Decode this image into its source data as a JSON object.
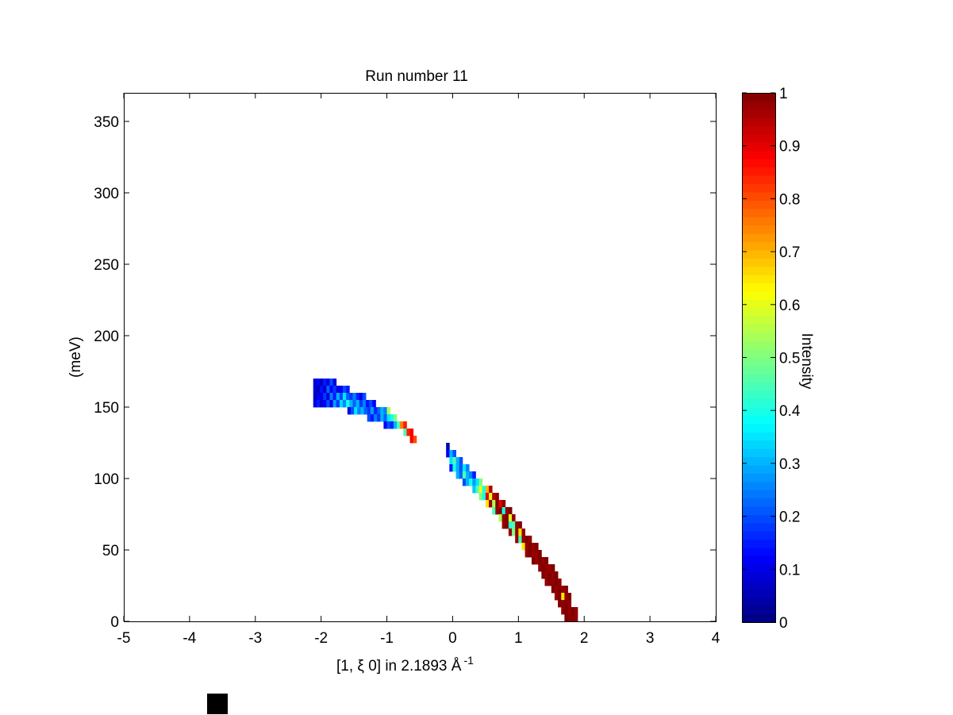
{
  "chart_data": {
    "type": "heatmap",
    "title": "Run number 11",
    "xlabel": "[1, ξ 0] in 2.1893 Å",
    "xlabel_superscript": "-1",
    "ylabel": "(meV)",
    "xlim": [
      -5,
      4
    ],
    "ylim": [
      0,
      370
    ],
    "x_ticks": [
      -5,
      -4,
      -3,
      -2,
      -1,
      0,
      1,
      2,
      3,
      4
    ],
    "y_ticks": [
      0,
      50,
      100,
      150,
      200,
      250,
      300,
      350
    ],
    "colorbar": {
      "label": "Intensity",
      "colormap": "jet",
      "range": [
        0,
        1
      ],
      "ticks": [
        0,
        0.1,
        0.2,
        0.3,
        0.4,
        0.5,
        0.6,
        0.7,
        0.8,
        0.9,
        1
      ]
    },
    "cell_size": {
      "dx": 0.05,
      "dy": 5
    },
    "rows": [
      {
        "y": 165,
        "x_start": -2.12,
        "values": [
          0.08,
          0.12,
          0.06,
          0.15,
          0.1,
          0.2,
          0.09
        ]
      },
      {
        "y": 160,
        "x_start": -2.12,
        "values": [
          0.1,
          0.05,
          0.14,
          0.08,
          0.22,
          0.12,
          0.18,
          0.1,
          0.12,
          0.2,
          0.15
        ]
      },
      {
        "y": 155,
        "x_start": -2.12,
        "values": [
          0.06,
          0.12,
          0.1,
          0.18,
          0.09,
          0.25,
          0.15,
          0.3,
          0.2,
          0.35,
          0.22,
          0.18,
          0.25,
          0.16,
          0.12,
          0.2
        ]
      },
      {
        "y": 150,
        "x_start": -2.12,
        "values": [
          0.1,
          0.15,
          0.08,
          0.12,
          0.2,
          0.1,
          0.28,
          0.18,
          0.34,
          0.26,
          0.4,
          0.3,
          0.22,
          0.3,
          0.18,
          0.25,
          0.14,
          0.2,
          0.12
        ]
      },
      {
        "y": 145,
        "x_start": -1.6,
        "values": [
          0.1,
          0.2,
          0.35,
          0.25,
          0.3,
          0.22,
          0.18,
          0.28,
          0.16,
          0.22,
          0.3,
          0.25,
          0.55
        ]
      },
      {
        "y": 140,
        "x_start": -1.3,
        "values": [
          0.2,
          0.15,
          0.25,
          0.18,
          0.3,
          0.22,
          0.35,
          0.4,
          0.5
        ]
      },
      {
        "y": 135,
        "x_start": -1.05,
        "values": [
          0.12,
          0.2,
          0.16,
          0.3,
          0.45,
          0.75,
          0.85
        ]
      },
      {
        "y": 130,
        "x_start": -0.75,
        "values": [
          0.45,
          0.85,
          0.88
        ]
      },
      {
        "y": 125,
        "x_start": -0.65,
        "values": [
          0.88,
          0.8
        ]
      },
      {
        "y": 120,
        "x_start": -0.1,
        "values": [
          0.05
        ]
      },
      {
        "y": 115,
        "x_start": -0.1,
        "values": [
          0.12,
          0.3,
          0.2
        ]
      },
      {
        "y": 110,
        "x_start": -0.05,
        "values": [
          0.35,
          0.45,
          0.3,
          0.2
        ]
      },
      {
        "y": 105,
        "x_start": -0.05,
        "values": [
          0.15,
          0.4,
          0.3,
          0.2,
          0.35,
          0.25
        ]
      },
      {
        "y": 100,
        "x_start": 0.05,
        "values": [
          0.3,
          0.22,
          0.45,
          0.3,
          0.25,
          0.15
        ]
      },
      {
        "y": 95,
        "x_start": 0.15,
        "values": [
          0.2,
          0.3,
          0.4,
          0.28,
          0.35,
          0.5
        ]
      },
      {
        "y": 90,
        "x_start": 0.3,
        "values": [
          0.32,
          0.45,
          0.6,
          0.4,
          0.7,
          0.95
        ]
      },
      {
        "y": 85,
        "x_start": 0.4,
        "values": [
          0.5,
          0.4,
          0.9,
          0.6,
          0.95,
          0.98
        ]
      },
      {
        "y": 80,
        "x_start": 0.5,
        "values": [
          0.65,
          0.98,
          0.55,
          1.0,
          0.9,
          0.98
        ]
      },
      {
        "y": 75,
        "x_start": 0.6,
        "values": [
          0.45,
          0.98,
          1.0,
          0.4,
          0.98,
          1.0
        ]
      },
      {
        "y": 70,
        "x_start": 0.7,
        "values": [
          0.55,
          0.98,
          1.0,
          0.6,
          0.98
        ]
      },
      {
        "y": 65,
        "x_start": 0.75,
        "values": [
          0.98,
          1.0,
          0.42,
          0.45,
          0.98,
          1.0
        ]
      },
      {
        "y": 60,
        "x_start": 0.85,
        "values": [
          0.98,
          0.5,
          0.98,
          0.65,
          0.98
        ]
      },
      {
        "y": 55,
        "x_start": 0.95,
        "values": [
          0.98,
          0.45,
          0.98,
          1.0,
          0.98
        ]
      },
      {
        "y": 50,
        "x_start": 1.05,
        "values": [
          0.65,
          0.98,
          1.0,
          0.98,
          1.0
        ]
      },
      {
        "y": 45,
        "x_start": 1.1,
        "values": [
          0.98,
          1.0,
          0.98,
          0.98,
          1.0
        ]
      },
      {
        "y": 40,
        "x_start": 1.2,
        "values": [
          1.0,
          0.98,
          1.0,
          0.98,
          1.0
        ]
      },
      {
        "y": 35,
        "x_start": 1.3,
        "values": [
          0.98,
          1.0,
          0.98,
          0.98,
          1.0
        ]
      },
      {
        "y": 30,
        "x_start": 1.35,
        "values": [
          1.0,
          0.98,
          1.0,
          0.98,
          1.0
        ]
      },
      {
        "y": 25,
        "x_start": 1.4,
        "values": [
          0.98,
          1.0,
          0.98,
          1.0,
          0.98
        ]
      },
      {
        "y": 20,
        "x_start": 1.5,
        "values": [
          1.0,
          0.98,
          1.0,
          0.98,
          1.0
        ]
      },
      {
        "y": 15,
        "x_start": 1.55,
        "values": [
          0.98,
          1.0,
          0.65,
          0.98,
          1.0
        ]
      },
      {
        "y": 10,
        "x_start": 1.6,
        "values": [
          1.0,
          0.98,
          1.0,
          0.98
        ]
      },
      {
        "y": 5,
        "x_start": 1.65,
        "values": [
          0.98,
          1.0,
          0.98,
          1.0,
          0.98
        ]
      },
      {
        "y": 0,
        "x_start": 1.7,
        "values": [
          1.0,
          0.98,
          1.0,
          0.98
        ]
      }
    ]
  }
}
